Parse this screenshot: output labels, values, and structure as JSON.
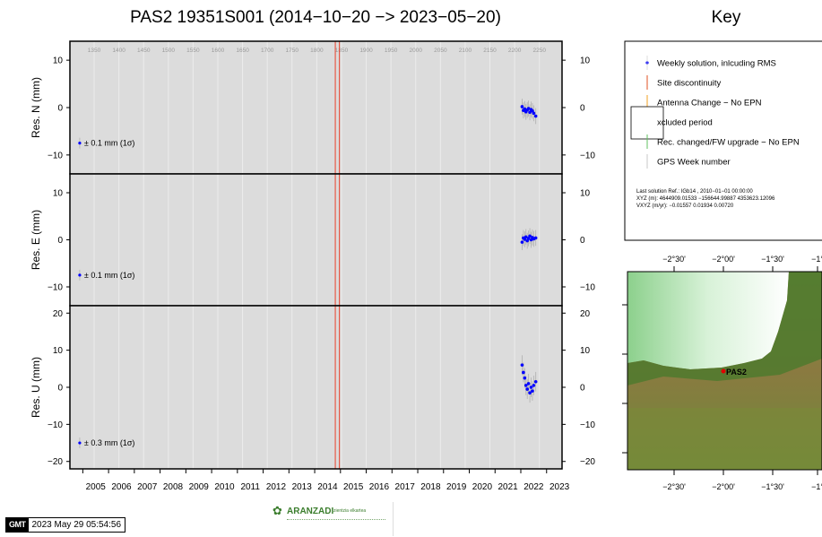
{
  "header": {
    "title": "PAS2 19351S001 (2014−10−20 −> 2023−05−20)",
    "key_title": "Key"
  },
  "chart_data": {
    "type": "scatter",
    "x_axis": {
      "range": [
        2004.5,
        2023.6
      ],
      "tick_labels": [
        "2005",
        "2006",
        "2007",
        "2008",
        "2009",
        "2010",
        "2011",
        "2012",
        "2013",
        "2014",
        "2015",
        "2016",
        "2017",
        "2018",
        "2019",
        "2020",
        "2021",
        "2022",
        "2023"
      ],
      "gps_week_labels": [
        "1350",
        "1400",
        "1450",
        "1500",
        "1550",
        "1600",
        "1650",
        "1700",
        "1750",
        "1800",
        "1850",
        "1900",
        "1950",
        "2000",
        "2050",
        "2100",
        "2150",
        "2200",
        "2250"
      ],
      "gps_week_positions": [
        2005.44,
        2006.4,
        2007.36,
        2008.32,
        2009.28,
        2010.24,
        2011.2,
        2012.16,
        2013.12,
        2014.08,
        2015.04,
        2016.0,
        2016.96,
        2017.92,
        2018.88,
        2019.84,
        2020.8,
        2021.76,
        2022.72
      ]
    },
    "site_discontinuities": [
      2014.8,
      2014.96
    ],
    "panels": [
      {
        "name": "north",
        "ylabel": "Res. N (mm)",
        "ylim": [
          -14,
          14
        ],
        "yticks": [
          -10,
          0,
          10
        ],
        "ytick_labels": [
          "−10",
          "0",
          "10"
        ],
        "error_label": "± 0.1 mm (1σ)",
        "error_marker": {
          "x": 2004.88,
          "y": -7.5
        },
        "points": [
          {
            "x": 2022.05,
            "y": 0.2
          },
          {
            "x": 2022.1,
            "y": -0.6
          },
          {
            "x": 2022.15,
            "y": -0.3
          },
          {
            "x": 2022.2,
            "y": -0.9
          },
          {
            "x": 2022.25,
            "y": -0.5
          },
          {
            "x": 2022.3,
            "y": -0.2
          },
          {
            "x": 2022.35,
            "y": -1.0
          },
          {
            "x": 2022.4,
            "y": -0.4
          },
          {
            "x": 2022.45,
            "y": -0.7
          },
          {
            "x": 2022.5,
            "y": -1.2
          },
          {
            "x": 2022.58,
            "y": -1.8
          }
        ]
      },
      {
        "name": "east",
        "ylabel": "Res. E (mm)",
        "ylim": [
          -14,
          14
        ],
        "yticks": [
          -10,
          0,
          10
        ],
        "ytick_labels": [
          "−10",
          "0",
          "10"
        ],
        "error_label": "± 0.1 mm (1σ)",
        "error_marker": {
          "x": 2004.88,
          "y": -7.5
        },
        "points": [
          {
            "x": 2022.05,
            "y": -0.5
          },
          {
            "x": 2022.1,
            "y": 0.4
          },
          {
            "x": 2022.15,
            "y": 0.1
          },
          {
            "x": 2022.2,
            "y": 0.6
          },
          {
            "x": 2022.25,
            "y": -0.2
          },
          {
            "x": 2022.3,
            "y": 0.3
          },
          {
            "x": 2022.35,
            "y": 0.8
          },
          {
            "x": 2022.4,
            "y": 0.0
          },
          {
            "x": 2022.45,
            "y": 0.5
          },
          {
            "x": 2022.5,
            "y": 0.2
          },
          {
            "x": 2022.58,
            "y": 0.4
          }
        ]
      },
      {
        "name": "up",
        "ylabel": "Res. U (mm)",
        "ylim": [
          -22,
          22
        ],
        "yticks": [
          -20,
          -10,
          0,
          10,
          20
        ],
        "ytick_labels": [
          "−20",
          "−10",
          "0",
          "10",
          "20"
        ],
        "error_label": "± 0.3 mm (1σ)",
        "error_marker": {
          "x": 2004.88,
          "y": -15
        },
        "points": [
          {
            "x": 2022.05,
            "y": 6.0
          },
          {
            "x": 2022.1,
            "y": 4.0
          },
          {
            "x": 2022.15,
            "y": 2.5
          },
          {
            "x": 2022.2,
            "y": 0.5
          },
          {
            "x": 2022.25,
            "y": -0.5
          },
          {
            "x": 2022.3,
            "y": 1.0
          },
          {
            "x": 2022.35,
            "y": -1.5
          },
          {
            "x": 2022.4,
            "y": 0.0
          },
          {
            "x": 2022.45,
            "y": -1.0
          },
          {
            "x": 2022.5,
            "y": 0.5
          },
          {
            "x": 2022.58,
            "y": 1.5
          }
        ]
      }
    ]
  },
  "key": {
    "items": [
      {
        "label": "Weekly solution, inlcuding RMS",
        "symbol": "point",
        "color": "#0000ff"
      },
      {
        "label": "Site discontinuity",
        "symbol": "line",
        "color": "#e05020"
      },
      {
        "label": "Antenna Change − No EPN",
        "symbol": "line",
        "color": "#f0a020"
      },
      {
        "label": "xcluded period",
        "symbol": "box",
        "color": "#ffffff"
      },
      {
        "label": "Rec. changed/FW upgrade − No EPN",
        "symbol": "line",
        "color": "#60c060"
      },
      {
        "label": "GPS Week number",
        "symbol": "line",
        "color": "#c8c8c8"
      }
    ],
    "solution_lines": [
      "Last solution Ref.: IGb14 , 2010−01−01 00:00:00",
      "XYZ (m):  4644909.01533  −156644.99887  4353623.12096",
      "VXYZ (m/yr):     −0.01557       0.01934       0.00720"
    ]
  },
  "map": {
    "lon_labels": [
      "−2°30'",
      "−2°00'",
      "−1°30'",
      "−1°"
    ],
    "site_label": "PAS2"
  },
  "footer": {
    "logo_text": "GMT",
    "timestamp": "2023 May 29 05:54:56",
    "institution": "ARANZADI",
    "institution_sub": "zientzia elkartea"
  }
}
